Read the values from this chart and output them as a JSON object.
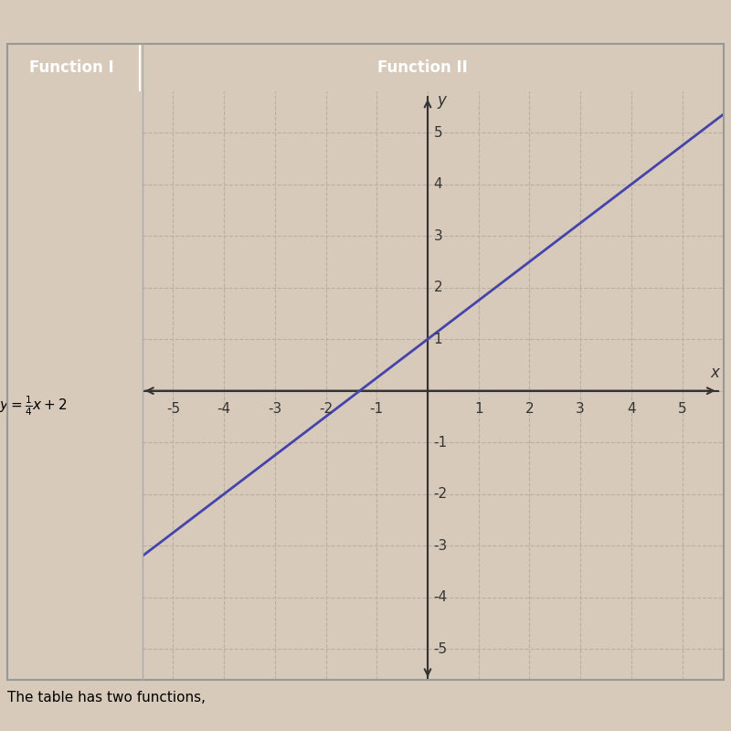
{
  "title_left": "Function I",
  "title_right": "Function II",
  "header_bg_color": "#5aafca",
  "header_text_color": "#ffffff",
  "function1_label": "$y = \\frac{1}{4}x + 2$",
  "slope": 0.75,
  "intercept": 1.0,
  "line_color": "#4444aa",
  "line_width": 2.0,
  "xlim": [
    -5.6,
    5.8
  ],
  "ylim": [
    -5.6,
    5.8
  ],
  "xticks": [
    -5,
    -4,
    -3,
    -2,
    -1,
    1,
    2,
    3,
    4,
    5
  ],
  "yticks": [
    -5,
    -4,
    -3,
    -2,
    -1,
    1,
    2,
    3,
    4,
    5
  ],
  "grid_color": "#b8b0a0",
  "grid_style": "--",
  "bg_color": "#e8dece",
  "outer_bg": "#d8caba",
  "axis_color": "#333333",
  "tick_label_color": "#333333",
  "tick_fontsize": 11,
  "x_label": "x",
  "y_label": "y",
  "bottom_text": "The table has two functions,"
}
